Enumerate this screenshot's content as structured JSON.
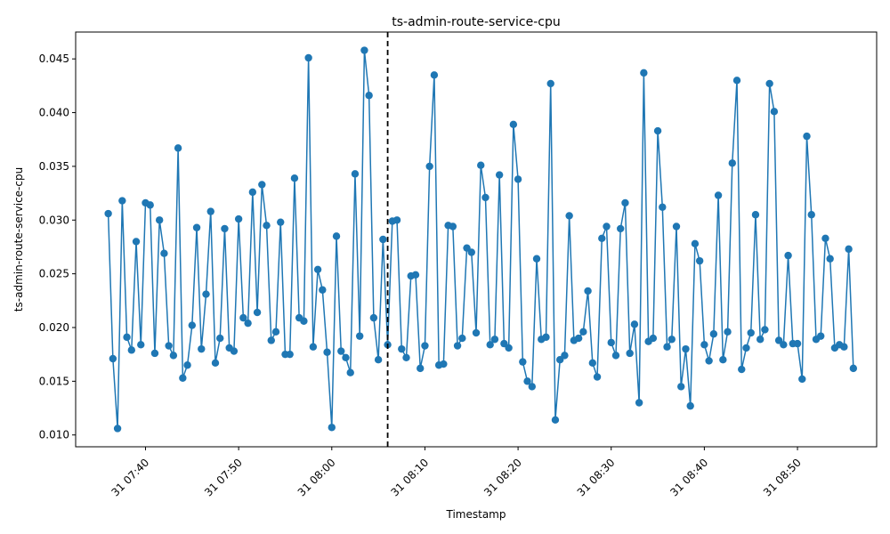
{
  "chart_data": {
    "type": "line",
    "title": "ts-admin-route-service-cpu",
    "xlabel": "Timestamp",
    "ylabel": "ts-admin-route-service-cpu",
    "x_tick_labels": [
      "31 07:40",
      "31 07:50",
      "31 08:00",
      "31 08:10",
      "31 08:20",
      "31 08:30",
      "31 08:40",
      "31 08:50"
    ],
    "x_tick_times": [
      "07:40",
      "07:50",
      "08:00",
      "08:10",
      "08:20",
      "08:30",
      "08:40",
      "08:50"
    ],
    "y_ticks": [
      0.01,
      0.015,
      0.02,
      0.025,
      0.03,
      0.035,
      0.04,
      0.045
    ],
    "y_tick_labels": [
      "0.010",
      "0.015",
      "0.020",
      "0.025",
      "0.030",
      "0.035",
      "0.040",
      "0.045"
    ],
    "xlim": [
      "07:32:30",
      "08:58:30"
    ],
    "ylim": [
      0.0089,
      0.0475
    ],
    "grid": false,
    "marker": "circle",
    "line_color": "#1f77b4",
    "vline": {
      "time": "08:06",
      "style": "dashed",
      "color": "#000000"
    },
    "x_start": "07:36",
    "x_step_seconds": 30,
    "series": [
      {
        "values": [
          0.0306,
          0.0171,
          0.0106,
          0.0318,
          0.0191,
          0.0179,
          0.028,
          0.0184,
          0.0316,
          0.0314,
          0.0176,
          0.03,
          0.0269,
          0.0183,
          0.0174,
          0.0367,
          0.0153,
          0.0165,
          0.0202,
          0.0293,
          0.018,
          0.0231,
          0.0308,
          0.0167,
          0.019,
          0.0292,
          0.0181,
          0.0178,
          0.0301,
          0.0209,
          0.0204,
          0.0326,
          0.0214,
          0.0333,
          0.0295,
          0.0188,
          0.0196,
          0.0298,
          0.0175,
          0.0175,
          0.0339,
          0.0209,
          0.0206,
          0.0451,
          0.0182,
          0.0254,
          0.0235,
          0.0177,
          0.0107,
          0.0285,
          0.0178,
          0.0172,
          0.0158,
          0.0343,
          0.0192,
          0.0458,
          0.0416,
          0.0209,
          0.017,
          0.0282,
          0.0184,
          0.0299,
          0.03,
          0.018,
          0.0172,
          0.0248,
          0.0249,
          0.0162,
          0.0183,
          0.035,
          0.0435,
          0.0165,
          0.0166,
          0.0295,
          0.0294,
          0.0183,
          0.019,
          0.0274,
          0.027,
          0.0195,
          0.0351,
          0.0321,
          0.0184,
          0.0189,
          0.0342,
          0.0185,
          0.0181,
          0.0389,
          0.0338,
          0.0168,
          0.015,
          0.0145,
          0.0264,
          0.0189,
          0.0191,
          0.0427,
          0.0114,
          0.017,
          0.0174,
          0.0304,
          0.0188,
          0.019,
          0.0196,
          0.0234,
          0.0167,
          0.0154,
          0.0283,
          0.0294,
          0.0186,
          0.0174,
          0.0292,
          0.0316,
          0.0176,
          0.0203,
          0.013,
          0.0437,
          0.0187,
          0.019,
          0.0383,
          0.0312,
          0.0182,
          0.0189,
          0.0294,
          0.0145,
          0.018,
          0.0127,
          0.0278,
          0.0262,
          0.0184,
          0.0169,
          0.0194,
          0.0323,
          0.017,
          0.0196,
          0.0353,
          0.043,
          0.0161,
          0.0181,
          0.0195,
          0.0305,
          0.0189,
          0.0198,
          0.0427,
          0.0401,
          0.0188,
          0.0184,
          0.0267,
          0.0185,
          0.0185,
          0.0152,
          0.0378,
          0.0305,
          0.0189,
          0.0192,
          0.0283,
          0.0264,
          0.0181,
          0.0184,
          0.0182,
          0.0273,
          0.0162
        ]
      }
    ]
  }
}
